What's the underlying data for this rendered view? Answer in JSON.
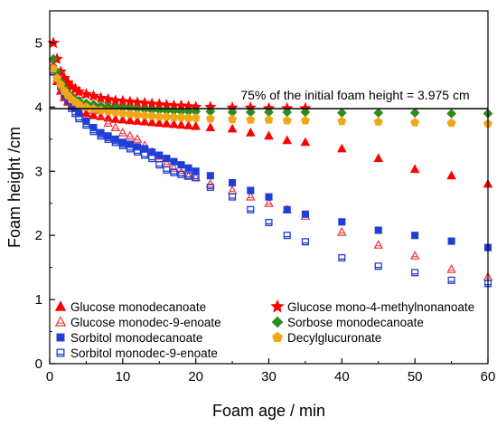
{
  "chart_data": {
    "type": "scatter",
    "xlabel": "Foam age / min",
    "ylabel": "Foam height /cm",
    "xlim": [
      0,
      60
    ],
    "ylim": [
      0,
      5.5
    ],
    "xticks": [
      0,
      10,
      20,
      30,
      40,
      50,
      60
    ],
    "yticks": [
      0,
      1,
      2,
      3,
      4,
      5
    ],
    "grid": false,
    "legend_position": "bottom-inside",
    "reference_line": {
      "y": 3.975,
      "label": "75% of the initial foam height = 3.975 cm"
    },
    "series": [
      {
        "name": "Glucose monodecanoate",
        "marker": "triangle-up",
        "filled": true,
        "color": "#ff0000",
        "x": [
          0.5,
          1,
          1.5,
          2,
          2.5,
          3,
          3.5,
          4,
          5,
          6,
          7,
          8,
          9,
          10,
          11,
          12,
          13,
          14,
          15,
          16,
          17,
          18,
          19,
          20,
          22,
          25,
          27.5,
          30,
          32.5,
          35,
          40,
          45,
          50,
          55,
          60
        ],
        "y": [
          4.65,
          4.4,
          4.25,
          4.15,
          4.08,
          4.02,
          3.98,
          3.94,
          3.9,
          3.87,
          3.85,
          3.83,
          3.81,
          3.8,
          3.79,
          3.78,
          3.77,
          3.76,
          3.75,
          3.74,
          3.73,
          3.72,
          3.71,
          3.7,
          3.68,
          3.66,
          3.6,
          3.55,
          3.48,
          3.45,
          3.35,
          3.2,
          3.03,
          2.93,
          2.8
        ]
      },
      {
        "name": "Glucose monodec-9-enoate",
        "marker": "triangle-up",
        "filled": false,
        "color": "#e8383d",
        "x": [
          0.5,
          1,
          1.5,
          2,
          2.5,
          3,
          3.5,
          4,
          5,
          6,
          7,
          8,
          9,
          10,
          11,
          12,
          13,
          14,
          15,
          16,
          17,
          18,
          19,
          20,
          22,
          25,
          27.5,
          30,
          32.5,
          35,
          40,
          45,
          50,
          55,
          60
        ],
        "y": [
          4.75,
          4.55,
          4.45,
          4.4,
          4.35,
          4.32,
          4.25,
          4.2,
          4.05,
          3.95,
          3.85,
          3.75,
          3.68,
          3.6,
          3.55,
          3.5,
          3.4,
          3.3,
          3.2,
          3.12,
          3.05,
          2.98,
          2.92,
          2.9,
          2.8,
          2.7,
          2.6,
          2.5,
          2.4,
          2.3,
          2.05,
          1.85,
          1.68,
          1.47,
          1.35
        ]
      },
      {
        "name": "Sorbitol monodecanoate",
        "marker": "square",
        "filled": true,
        "color": "#1f3fd6",
        "x": [
          0.5,
          1,
          1.5,
          2,
          2.5,
          3,
          3.5,
          4,
          5,
          6,
          7,
          8,
          9,
          10,
          11,
          12,
          13,
          14,
          15,
          16,
          17,
          18,
          19,
          20,
          22,
          25,
          27.5,
          30,
          32.5,
          35,
          40,
          45,
          50,
          55,
          60
        ],
        "y": [
          4.6,
          4.45,
          4.35,
          4.25,
          4.18,
          4.1,
          4.0,
          3.9,
          3.78,
          3.68,
          3.6,
          3.55,
          3.5,
          3.45,
          3.42,
          3.38,
          3.35,
          3.3,
          3.25,
          3.2,
          3.15,
          3.1,
          3.05,
          3.0,
          2.93,
          2.82,
          2.7,
          2.6,
          2.4,
          2.33,
          2.21,
          2.08,
          2.0,
          1.91,
          1.81
        ]
      },
      {
        "name": "Sorbitol monodec-9-enoate",
        "marker": "square",
        "filled": false,
        "color": "#1f3fd6",
        "x": [
          0.5,
          1,
          1.5,
          2,
          2.5,
          3,
          3.5,
          4,
          5,
          6,
          7,
          8,
          9,
          10,
          11,
          12,
          13,
          14,
          15,
          16,
          17,
          18,
          19,
          20,
          22,
          25,
          27.5,
          30,
          32.5,
          35,
          40,
          45,
          50,
          55,
          60
        ],
        "y": [
          4.55,
          4.45,
          4.32,
          4.2,
          4.1,
          3.98,
          3.9,
          3.82,
          3.72,
          3.62,
          3.55,
          3.5,
          3.45,
          3.4,
          3.35,
          3.3,
          3.25,
          3.2,
          3.1,
          3.02,
          2.98,
          2.95,
          2.93,
          2.9,
          2.75,
          2.6,
          2.4,
          2.2,
          2.0,
          1.9,
          1.65,
          1.52,
          1.42,
          1.3,
          1.25
        ]
      },
      {
        "name": "Glucose mono-4-methylnonanoate",
        "marker": "star",
        "filled": true,
        "color": "#ff0000",
        "x": [
          0.5,
          1,
          1.5,
          2,
          2.5,
          3,
          3.5,
          4,
          5,
          6,
          7,
          8,
          9,
          10,
          11,
          12,
          13,
          14,
          15,
          16,
          17,
          18,
          19,
          20,
          22,
          25,
          27.5,
          30,
          32.5,
          35
        ],
        "y": [
          5.0,
          4.75,
          4.55,
          4.45,
          4.38,
          4.32,
          4.28,
          4.24,
          4.2,
          4.17,
          4.14,
          4.12,
          4.1,
          4.09,
          4.08,
          4.07,
          4.06,
          4.05,
          4.04,
          4.03,
          4.02,
          4.02,
          4.01,
          4.0,
          4.0,
          3.99,
          3.99,
          3.98,
          3.98,
          3.98
        ]
      },
      {
        "name": "Sorbose monodecanoate",
        "marker": "diamond",
        "filled": true,
        "color": "#2e8b1e",
        "x": [
          0.5,
          1,
          1.5,
          2,
          2.5,
          3,
          3.5,
          4,
          5,
          6,
          7,
          8,
          9,
          10,
          11,
          12,
          13,
          14,
          15,
          16,
          17,
          18,
          19,
          20,
          22,
          25,
          27.5,
          30,
          32.5,
          35,
          40,
          45,
          50,
          55,
          60
        ],
        "y": [
          4.75,
          4.55,
          4.4,
          4.3,
          4.22,
          4.16,
          4.12,
          4.1,
          4.06,
          4.04,
          4.02,
          4.01,
          4.0,
          3.99,
          3.98,
          3.97,
          3.96,
          3.95,
          3.95,
          3.94,
          3.94,
          3.93,
          3.93,
          3.93,
          3.93,
          3.92,
          3.92,
          3.92,
          3.92,
          3.92,
          3.91,
          3.91,
          3.91,
          3.9,
          3.9
        ]
      },
      {
        "name": "Decylglucuronate",
        "marker": "pentagon",
        "filled": true,
        "color": "#f0a818",
        "x": [
          0.5,
          1,
          1.5,
          2,
          2.5,
          3,
          3.5,
          4,
          5,
          6,
          7,
          8,
          9,
          10,
          11,
          12,
          13,
          14,
          15,
          16,
          17,
          18,
          19,
          20,
          22,
          25,
          27.5,
          30,
          32.5,
          35,
          40,
          45,
          50,
          55,
          60
        ],
        "y": [
          4.6,
          4.45,
          4.35,
          4.25,
          4.18,
          4.12,
          4.08,
          4.04,
          4.0,
          3.97,
          3.95,
          3.93,
          3.92,
          3.9,
          3.89,
          3.88,
          3.87,
          3.86,
          3.85,
          3.85,
          3.84,
          3.84,
          3.83,
          3.83,
          3.82,
          3.81,
          3.8,
          3.8,
          3.79,
          3.79,
          3.78,
          3.77,
          3.76,
          3.75,
          3.74
        ]
      }
    ],
    "legend_entries": [
      {
        "series_index": 0,
        "column": 0,
        "row": 0
      },
      {
        "series_index": 4,
        "column": 1,
        "row": 0
      },
      {
        "series_index": 1,
        "column": 0,
        "row": 1
      },
      {
        "series_index": 5,
        "column": 1,
        "row": 1
      },
      {
        "series_index": 2,
        "column": 0,
        "row": 2
      },
      {
        "series_index": 6,
        "column": 1,
        "row": 2
      },
      {
        "series_index": 3,
        "column": 0,
        "row": 3
      }
    ]
  }
}
